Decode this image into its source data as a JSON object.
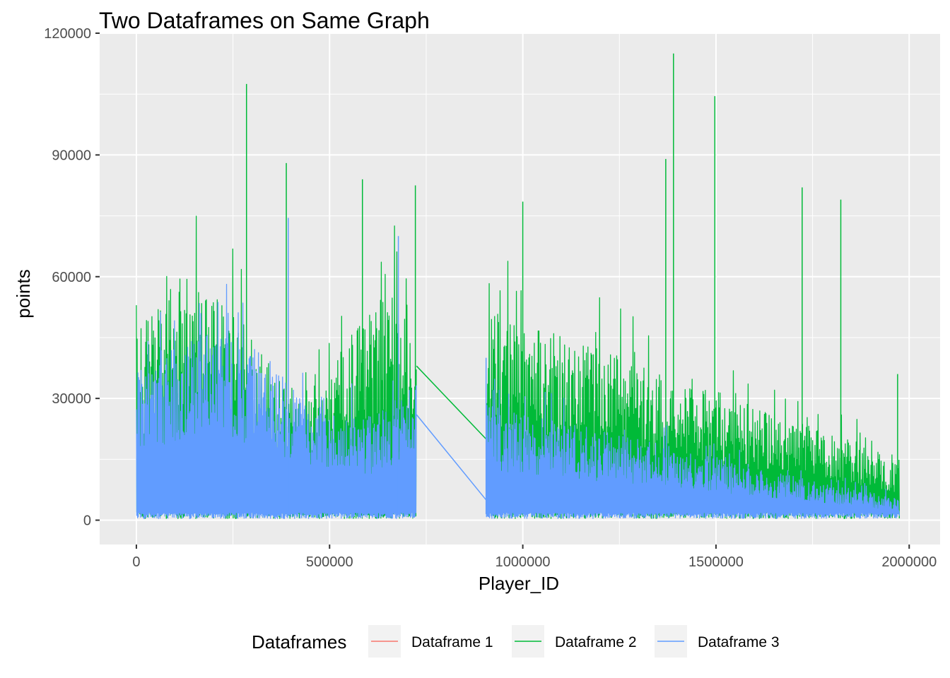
{
  "chart_data": {
    "type": "line",
    "title": "Two Dataframes on Same Graph",
    "xlabel": "Player_ID",
    "ylabel": "points",
    "xlim": [
      -95000,
      2080000
    ],
    "ylim": [
      -6000,
      120000
    ],
    "x_ticks": [
      0,
      500000,
      1000000,
      1500000,
      2000000
    ],
    "x_tick_labels": [
      "0",
      "500000",
      "1000000",
      "1500000",
      "2000000"
    ],
    "y_ticks": [
      0,
      30000,
      60000,
      90000,
      120000
    ],
    "y_tick_labels": [
      "0",
      "30000",
      "60000",
      "90000",
      "120000"
    ],
    "grid": true,
    "legend": {
      "title": "Dataframes",
      "position": "bottom",
      "entries": [
        "Dataframe 1",
        "Dataframe 2",
        "Dataframe 3"
      ]
    },
    "series": [
      {
        "name": "Dataframe 1",
        "color": "#F8766D",
        "note_range_x": [
          0,
          1975000
        ],
        "peaks": []
      },
      {
        "name": "Dataframe 2",
        "color": "#00BA38",
        "ranges": [
          [
            0,
            725000
          ],
          [
            905000,
            1975000
          ]
        ],
        "gap_connect": [
          [
            725000,
            38000
          ],
          [
            905000,
            20000
          ]
        ],
        "peaks": [
          {
            "x": 285000,
            "y": 107500
          },
          {
            "x": 388000,
            "y": 88000
          },
          {
            "x": 585000,
            "y": 84000
          },
          {
            "x": 722000,
            "y": 82500
          },
          {
            "x": 1000000,
            "y": 78500
          },
          {
            "x": 1370000,
            "y": 89000
          },
          {
            "x": 1390000,
            "y": 115000
          },
          {
            "x": 1497000,
            "y": 104500
          },
          {
            "x": 1723000,
            "y": 82000
          },
          {
            "x": 1823000,
            "y": 79000
          },
          {
            "x": 1970000,
            "y": 36000
          }
        ]
      },
      {
        "name": "Dataframe 3",
        "color": "#619CFF",
        "ranges": [
          [
            0,
            725000
          ],
          [
            905000,
            1975000
          ]
        ],
        "gap_connect": [
          [
            725000,
            26000
          ],
          [
            905000,
            5000
          ]
        ],
        "peaks": [
          {
            "x": 393000,
            "y": 74500
          },
          {
            "x": 678000,
            "y": 70000
          },
          {
            "x": 905000,
            "y": 40000
          }
        ]
      }
    ]
  }
}
